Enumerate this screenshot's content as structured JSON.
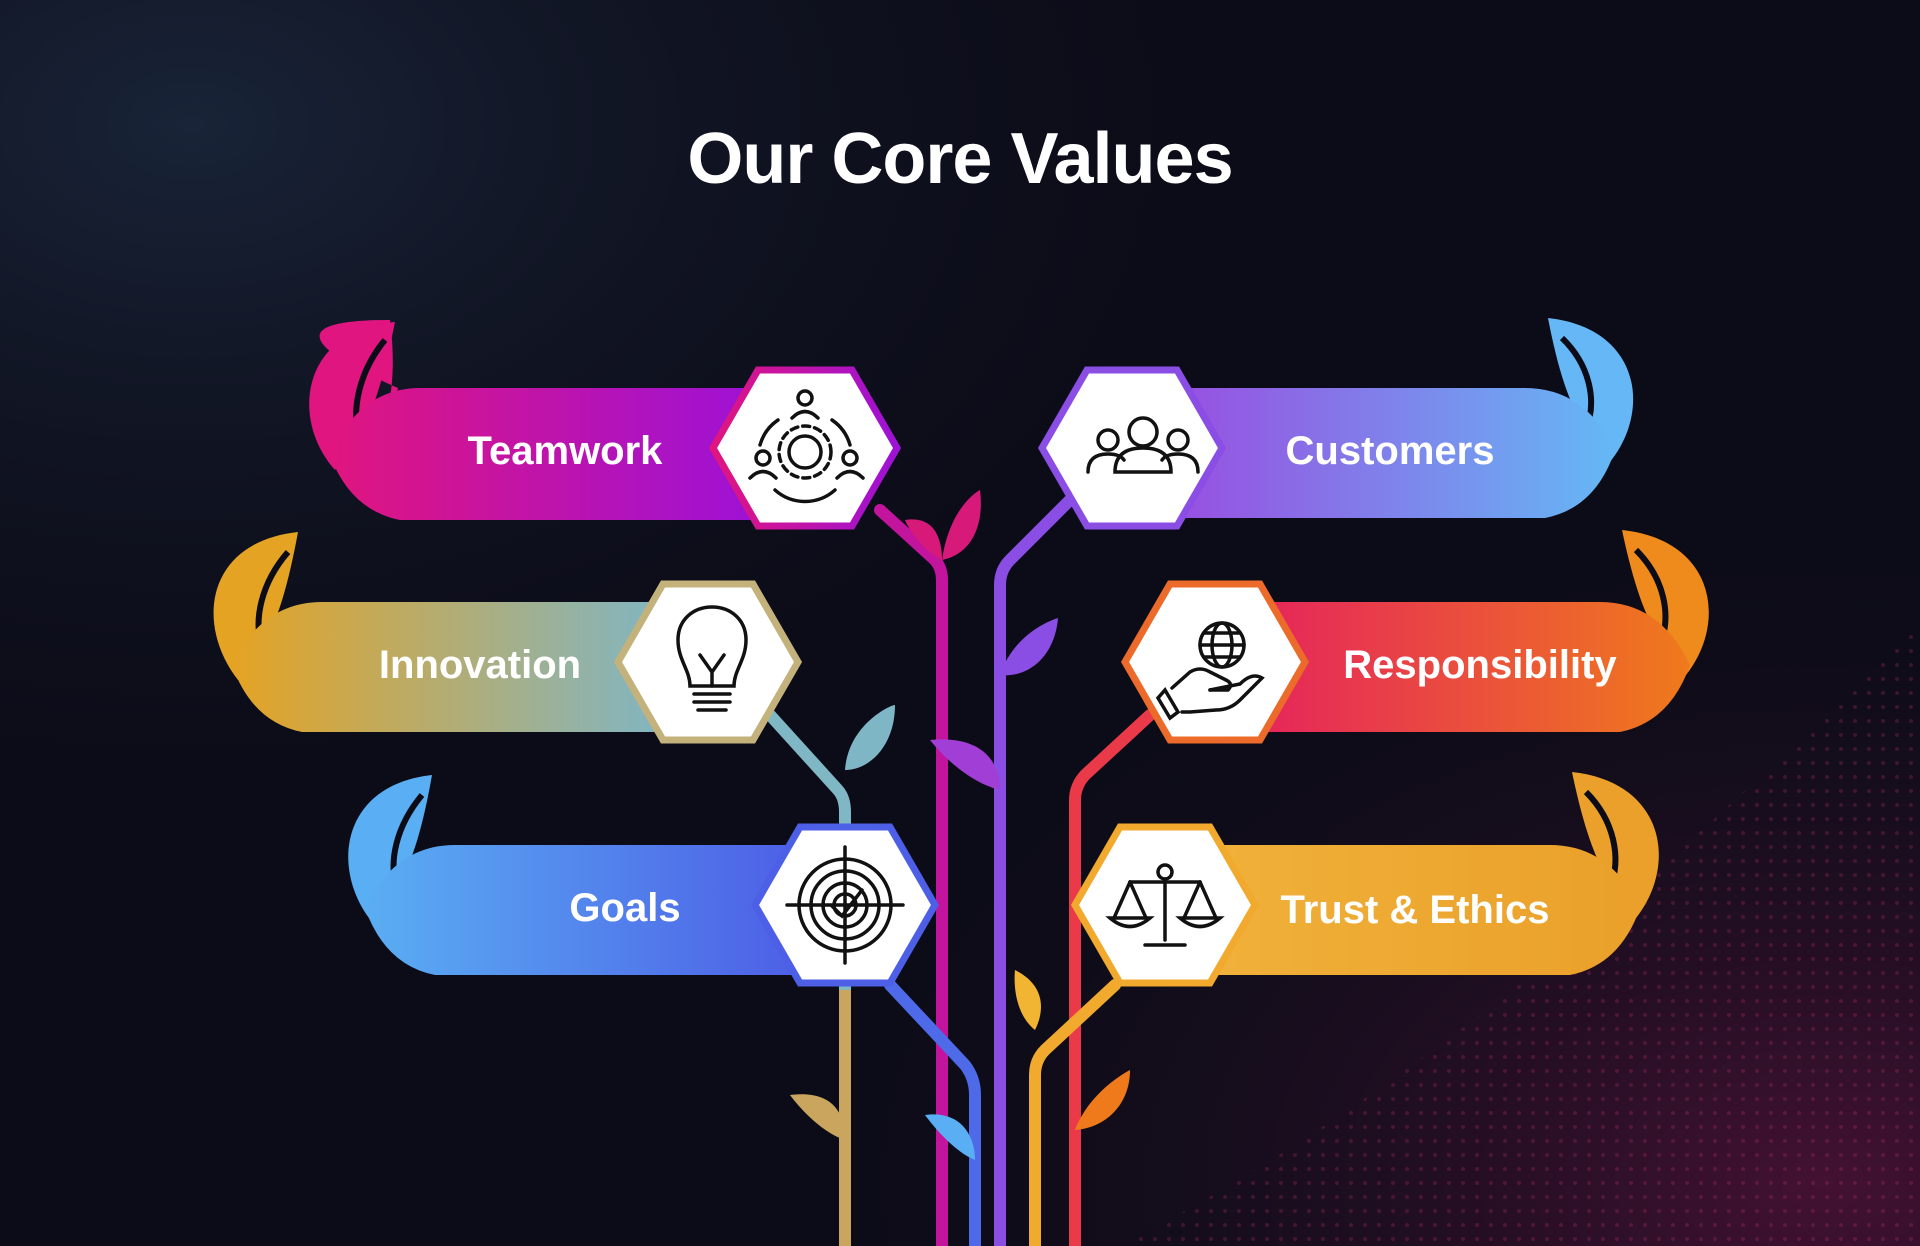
{
  "title": "Our Core Values",
  "values": [
    {
      "label": "Teamwork",
      "icon": "teamwork-gear-icon"
    },
    {
      "label": "Innovation",
      "icon": "lightbulb-icon"
    },
    {
      "label": "Goals",
      "icon": "target-icon"
    },
    {
      "label": "Customers",
      "icon": "people-group-icon"
    },
    {
      "label": "Responsibility",
      "icon": "globe-in-hand-icon"
    },
    {
      "label": "Trust & Ethics",
      "icon": "balance-scale-icon"
    }
  ],
  "colors": {
    "background": "#0c0c18",
    "teamwork": [
      "#e0157f",
      "#9d12d6"
    ],
    "innovation": [
      "#e5a323",
      "#7fb6c6"
    ],
    "goals": [
      "#5aaef3",
      "#4d5fe6"
    ],
    "customers": [
      "#9a4be0",
      "#65b8f5"
    ],
    "responsibility": [
      "#e5225e",
      "#ef7a1c"
    ],
    "trust_ethics": [
      "#f0b13a",
      "#eaa02a"
    ]
  }
}
